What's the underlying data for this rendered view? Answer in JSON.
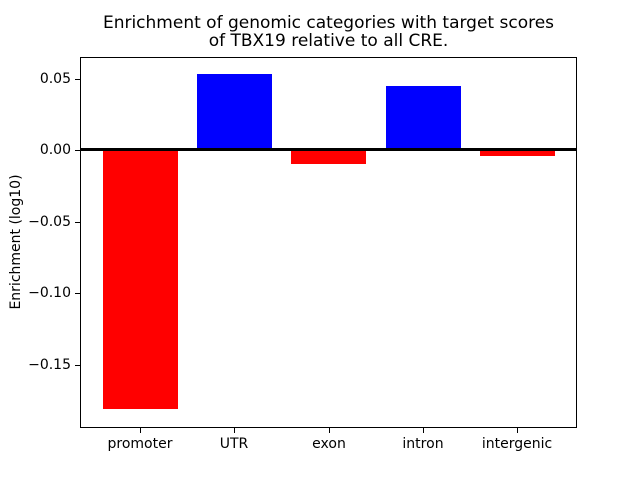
{
  "figure": {
    "title_line1": "Enrichment of genomic categories with target scores",
    "title_line2": "of TBX19 relative to all CRE."
  },
  "chart_data": {
    "type": "bar",
    "title": "Enrichment of genomic categories with target scores of TBX19 relative to all CRE.",
    "categories": [
      "promoter",
      "UTR",
      "exon",
      "intron",
      "intergenic"
    ],
    "values": [
      -0.181,
      0.053,
      -0.01,
      0.045,
      -0.004
    ],
    "bar_colors": [
      "#ff0000",
      "#0000ff",
      "#ff0000",
      "#0000ff",
      "#ff0000"
    ],
    "positive_color": "#0000ff",
    "negative_color": "#ff0000",
    "xlabel": "",
    "ylabel": "Enrichment (log10)",
    "ylim": [
      -0.192,
      0.065
    ],
    "yticks": [
      0.05,
      0.0,
      -0.05,
      -0.1,
      -0.15
    ],
    "ytick_labels": [
      "0.05",
      "0.00",
      "−0.05",
      "−0.10",
      "−0.15"
    ],
    "zero_line": true,
    "grid": false
  }
}
